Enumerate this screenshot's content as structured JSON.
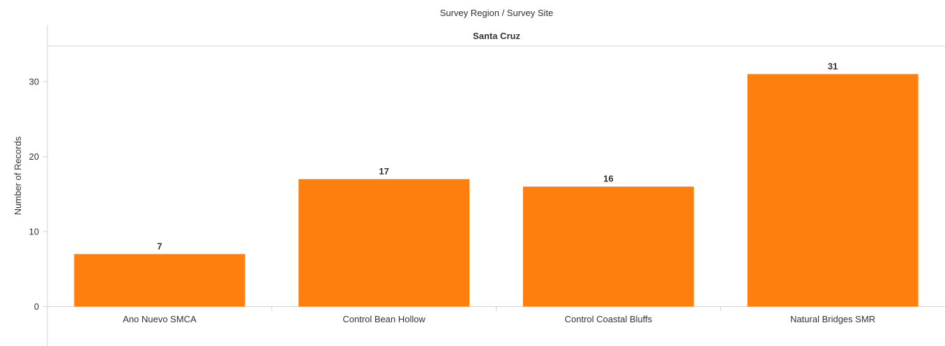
{
  "header": {
    "title": "Survey Region  /  Survey Site",
    "pane_title": "Santa Cruz"
  },
  "colors": {
    "bar": "#FF7F0E",
    "axis": "#d0d0d0",
    "text": "#333333"
  },
  "chart_data": {
    "type": "bar",
    "title": "",
    "xlabel": "",
    "ylabel": "Number of Records",
    "categories": [
      "Ano Nuevo SMCA",
      "Control Bean Hollow",
      "Control Coastal Bluffs",
      "Natural Bridges SMR"
    ],
    "values": [
      7,
      17,
      16,
      31
    ],
    "data_labels": [
      "7",
      "17",
      "16",
      "31"
    ],
    "yticks": [
      0,
      10,
      20,
      30
    ],
    "ytick_labels": [
      "0",
      "10",
      "20",
      "30"
    ],
    "ylim": [
      0,
      35
    ],
    "grid": false,
    "legend": "none"
  }
}
